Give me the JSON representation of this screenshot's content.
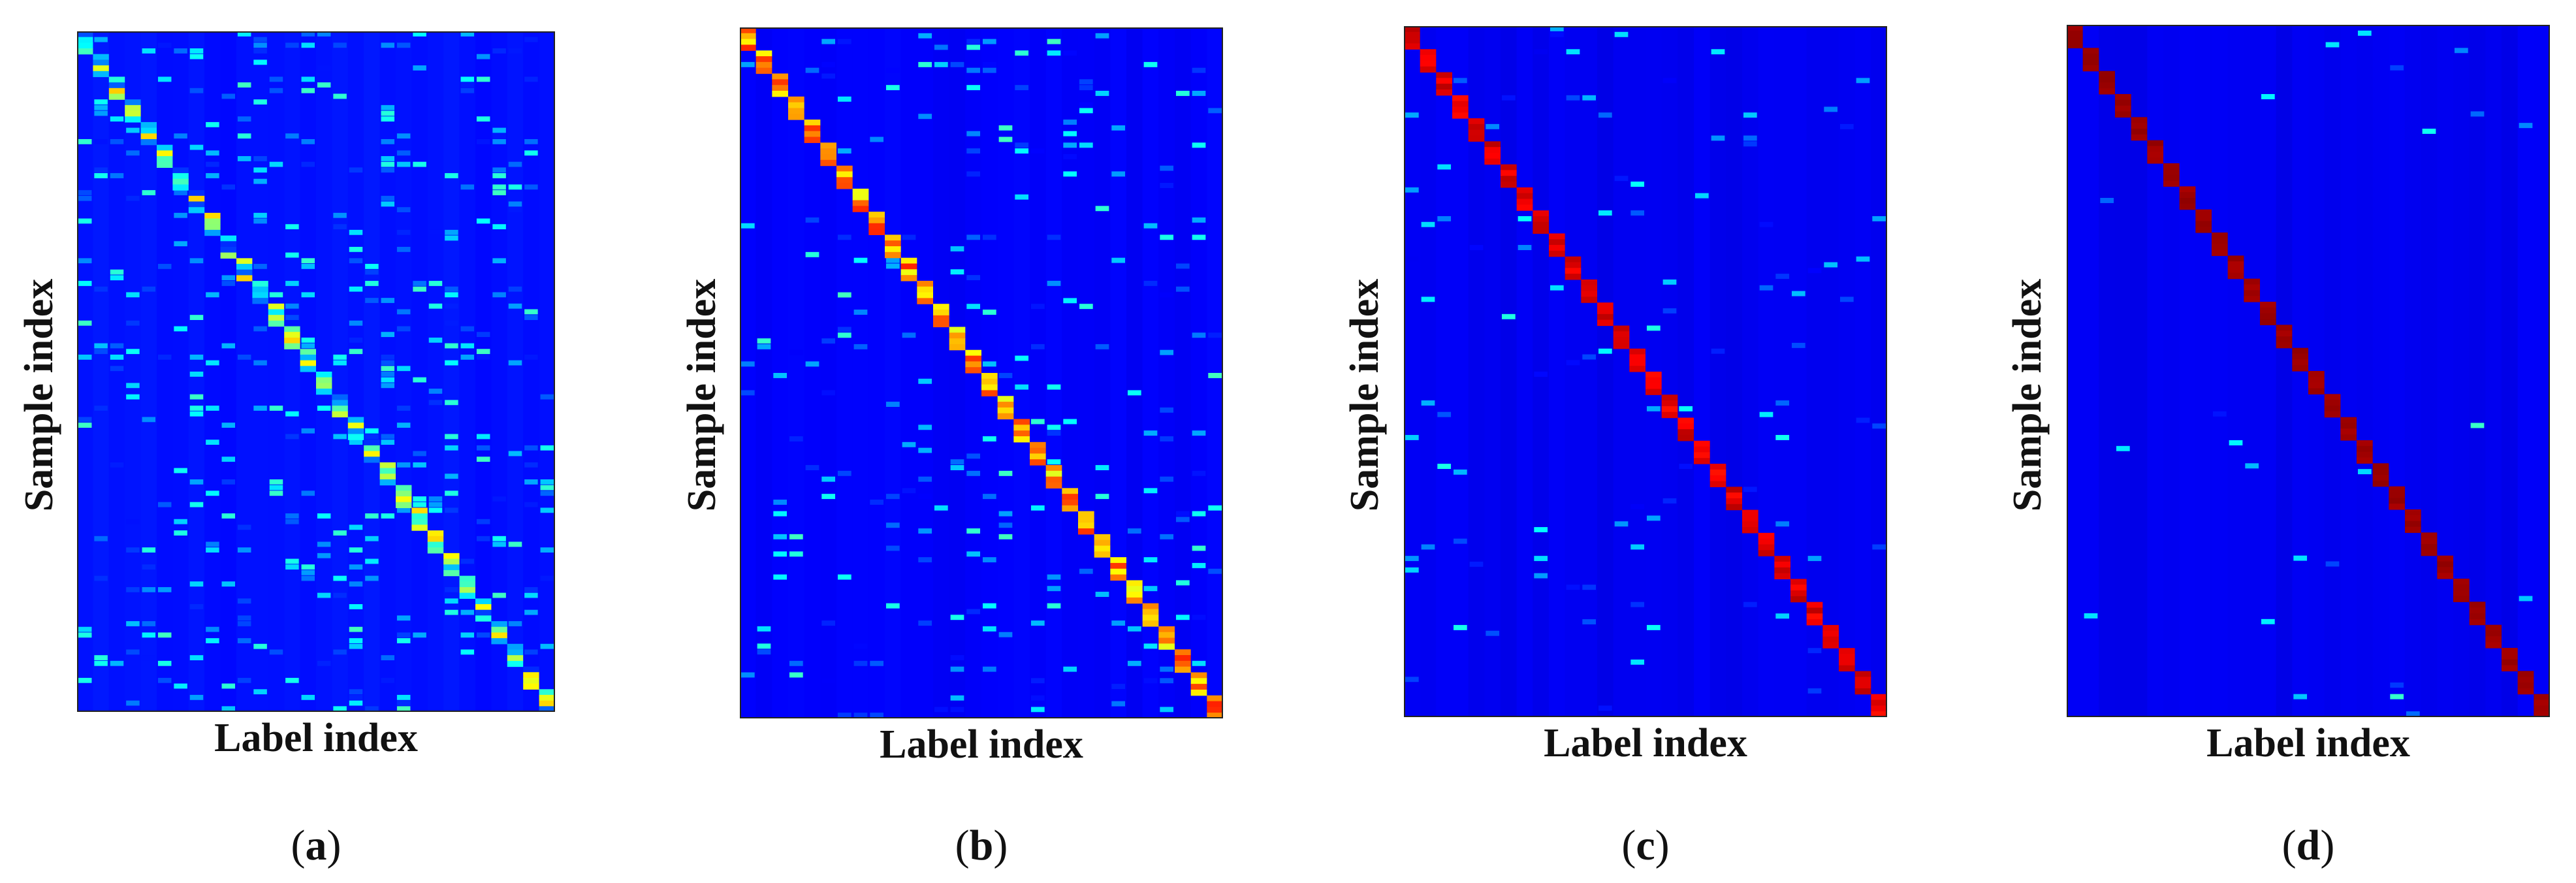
{
  "figure": {
    "panels": [
      {
        "caption_letter": "a",
        "xlabel": "Label index",
        "ylabel": "Sample index"
      },
      {
        "caption_letter": "b",
        "xlabel": "Label index",
        "ylabel": "Sample index"
      },
      {
        "caption_letter": "c",
        "xlabel": "Label index",
        "ylabel": "Sample index"
      },
      {
        "caption_letter": "d",
        "xlabel": "Label index",
        "ylabel": "Sample index"
      }
    ]
  },
  "chart_data": [
    {
      "type": "heatmap",
      "panel": "a",
      "xlabel": "Label index",
      "ylabel": "Sample index",
      "colormap": "jet",
      "grid": false,
      "ticks": false,
      "classes": 30,
      "samples_per_class": 4,
      "diagonal_intensity": 0.42,
      "background_intensity": 0.14,
      "off_diagonal_intensity": 0.3,
      "noise_density": 0.12
    },
    {
      "type": "heatmap",
      "panel": "b",
      "xlabel": "Label index",
      "ylabel": "Sample index",
      "colormap": "jet",
      "grid": false,
      "ticks": false,
      "classes": 30,
      "samples_per_class": 4,
      "diagonal_intensity": 0.72,
      "background_intensity": 0.12,
      "off_diagonal_intensity": 0.32,
      "noise_density": 0.07
    },
    {
      "type": "heatmap",
      "panel": "c",
      "xlabel": "Label index",
      "ylabel": "Sample index",
      "colormap": "jet",
      "grid": false,
      "ticks": false,
      "classes": 30,
      "samples_per_class": 4,
      "diagonal_intensity": 0.9,
      "background_intensity": 0.11,
      "off_diagonal_intensity": 0.3,
      "noise_density": 0.03
    },
    {
      "type": "heatmap",
      "panel": "d",
      "xlabel": "Label index",
      "ylabel": "Sample index",
      "colormap": "jet",
      "grid": false,
      "ticks": false,
      "classes": 30,
      "samples_per_class": 4,
      "diagonal_intensity": 0.97,
      "background_intensity": 0.11,
      "off_diagonal_intensity": 0.32,
      "noise_density": 0.006
    }
  ]
}
